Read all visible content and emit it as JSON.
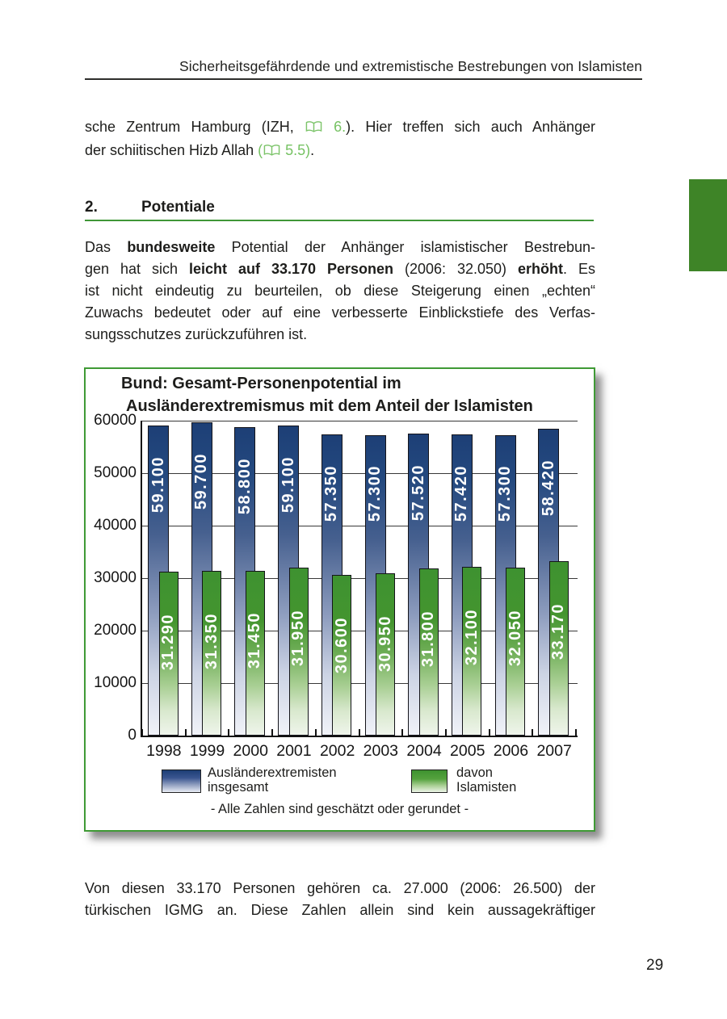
{
  "page": {
    "header": "Sicherheitsgefährdende und extremistische Bestrebungen von Islamisten",
    "page_number": "29"
  },
  "colors": {
    "accent_green": "#3f9737",
    "reference_green": "#76c263",
    "chapter_tab_green": "#3e8427",
    "chart_border_green": "#3f9a35",
    "bar_blue_top": "#1d3f76",
    "bar_green_top": "#3e9230"
  },
  "intro_paragraph": {
    "lines": [
      {
        "fit": true,
        "runs": [
          {
            "t": "sche Zentrum Hamburg (IZH, "
          },
          {
            "icon": "book-icon"
          },
          {
            "t": " 6.",
            "c": "green"
          },
          {
            "t": "). Hier treffen sich auch Anhänger"
          }
        ]
      },
      {
        "fit": false,
        "runs": [
          {
            "t": "der schiitischen Hizb Allah "
          },
          {
            "t": "(",
            "c": "green"
          },
          {
            "icon": "book-icon"
          },
          {
            "t": " 5.5)",
            "c": "green"
          },
          {
            "t": "."
          }
        ]
      }
    ]
  },
  "section_heading": {
    "number": "2.",
    "label": "Potentiale"
  },
  "main_paragraph": {
    "lines": [
      {
        "fit": true,
        "runs": [
          {
            "t": "Das "
          },
          {
            "t": "bundesweite",
            "c": "bold"
          },
          {
            "t": " Potential der Anhänger islamistischer Bestrebun-"
          }
        ]
      },
      {
        "fit": true,
        "runs": [
          {
            "t": "gen hat sich "
          },
          {
            "t": "leicht auf 33.170 Personen",
            "c": "bold"
          },
          {
            "t": " (2006: 32.050) "
          },
          {
            "t": "erhöht",
            "c": "bold"
          },
          {
            "t": ". Es"
          }
        ]
      },
      {
        "fit": true,
        "runs": [
          {
            "t": "ist nicht eindeutig zu beurteilen, ob diese Steigerung einen „echten“"
          }
        ]
      },
      {
        "fit": true,
        "runs": [
          {
            "t": "Zuwachs bedeutet oder auf eine verbesserte Einblickstiefe des Verfas-"
          }
        ]
      },
      {
        "fit": false,
        "runs": [
          {
            "t": "sungsschutzes zurückzuführen ist."
          }
        ]
      }
    ]
  },
  "chart_data": {
    "type": "bar",
    "title_lines": [
      "Bund: Gesamt-Personenpotential im",
      "Ausländerextremismus mit dem Anteil der Islamisten"
    ],
    "categories": [
      "1998",
      "1999",
      "2000",
      "2001",
      "2002",
      "2003",
      "2004",
      "2005",
      "2006",
      "2007"
    ],
    "series": [
      {
        "name": "Ausländerextremisten insgesamt",
        "legend_lines": [
          "Ausländerextremisten",
          "insgesamt"
        ],
        "color": "#1d3f76",
        "values": [
          59100,
          59700,
          58800,
          59100,
          57350,
          57300,
          57520,
          57420,
          57300,
          58420
        ],
        "labels": [
          "59.100",
          "59.700",
          "58.800",
          "59.100",
          "57.350",
          "57.300",
          "57.520",
          "57.420",
          "57.300",
          "58.420"
        ]
      },
      {
        "name": "davon Islamisten",
        "legend_lines": [
          "davon",
          "Islamisten"
        ],
        "color": "#3e9230",
        "values": [
          31290,
          31350,
          31450,
          31950,
          30600,
          30950,
          31800,
          32100,
          32050,
          33170
        ],
        "labels": [
          "31.290",
          "31.350",
          "31.450",
          "31.950",
          "30.600",
          "30.950",
          "31.800",
          "32.100",
          "32.050",
          "33.170"
        ]
      }
    ],
    "xlabel": "",
    "ylabel": "",
    "ylim": [
      0,
      60000
    ],
    "yticks": [
      0,
      10000,
      20000,
      30000,
      40000,
      50000,
      60000
    ],
    "ytick_labels": [
      "0",
      "10000",
      "20000",
      "30000",
      "40000",
      "50000",
      "60000"
    ],
    "grid": true,
    "legend_position": "bottom",
    "footnote": "- Alle Zahlen sind geschätzt oder gerundet -"
  },
  "closing_paragraph": {
    "lines": [
      {
        "fit": true,
        "runs": [
          {
            "t": "Von diesen 33.170 Personen gehören ca. 27.000 (2006: 26.500) der"
          }
        ]
      },
      {
        "fit": true,
        "runs": [
          {
            "t": "türkischen IGMG an. Diese Zahlen allein sind kein aussagekräftiger"
          }
        ]
      }
    ]
  }
}
